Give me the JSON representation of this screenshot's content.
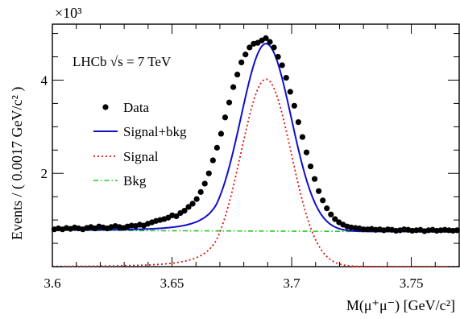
{
  "chart_data": {
    "type": "line",
    "xlabel": "M(μ⁺μ⁻) [GeV/c²]",
    "ylabel": "Events / ( 0.0017 GeV/c² )",
    "y_multiplier": "×10³",
    "annotation": "LHCb √s = 7 TeV",
    "xlim": [
      3.6,
      3.77
    ],
    "ylim": [
      0,
      5.2
    ],
    "x_ticks": [
      "3.6",
      "3.65",
      "3.7",
      "3.75"
    ],
    "y_ticks": [
      "2",
      "4"
    ],
    "legend": [
      {
        "label": "Data",
        "style": "marker",
        "color": "#000000"
      },
      {
        "label": "Signal+bkg",
        "style": "solid",
        "color": "#1010c8"
      },
      {
        "label": "Signal",
        "style": "dotted",
        "color": "#e01010"
      },
      {
        "label": "Bkg",
        "style": "dashdot",
        "color": "#22c822"
      }
    ],
    "model": {
      "peak_mass": 3.6893,
      "signal_amplitude": 4.02,
      "signal_width": 0.0105,
      "background_level": 0.78,
      "background_slope": -0.2
    },
    "series": [
      {
        "name": "Data",
        "x": [
          3.6008,
          3.6025,
          3.6042,
          3.6059,
          3.6076,
          3.6093,
          3.611,
          3.6127,
          3.6144,
          3.6161,
          3.6178,
          3.6195,
          3.6212,
          3.6229,
          3.6246,
          3.6263,
          3.628,
          3.6297,
          3.6314,
          3.6331,
          3.6348,
          3.6365,
          3.6382,
          3.6399,
          3.6416,
          3.6433,
          3.645,
          3.6467,
          3.6484,
          3.6501,
          3.6518,
          3.6535,
          3.6552,
          3.6569,
          3.6586,
          3.6603,
          3.662,
          3.6637,
          3.6654,
          3.6671,
          3.6688,
          3.6705,
          3.6722,
          3.6739,
          3.6756,
          3.6773,
          3.679,
          3.6807,
          3.6824,
          3.6841,
          3.6858,
          3.6875,
          3.6892,
          3.6909,
          3.6926,
          3.6943,
          3.696,
          3.6977,
          3.6994,
          3.7011,
          3.7028,
          3.7045,
          3.7062,
          3.7079,
          3.7096,
          3.7113,
          3.713,
          3.7147,
          3.7164,
          3.7181,
          3.7198,
          3.7215,
          3.7232,
          3.7249,
          3.7266,
          3.7283,
          3.73,
          3.7317,
          3.7334,
          3.7351,
          3.7368,
          3.7385,
          3.7402,
          3.7419,
          3.7436,
          3.7453,
          3.747,
          3.7487,
          3.7504,
          3.7521,
          3.7538,
          3.7555,
          3.7572,
          3.7589,
          3.7606,
          3.7623,
          3.764,
          3.7657,
          3.7674,
          3.7691
        ],
        "y": [
          0.8,
          0.82,
          0.8,
          0.83,
          0.81,
          0.84,
          0.82,
          0.8,
          0.83,
          0.85,
          0.82,
          0.86,
          0.84,
          0.82,
          0.85,
          0.87,
          0.85,
          0.83,
          0.86,
          0.88,
          0.87,
          0.9,
          0.88,
          0.92,
          0.95,
          0.98,
          1.0,
          1.02,
          1.05,
          1.1,
          1.08,
          1.15,
          1.2,
          1.28,
          1.35,
          1.45,
          1.6,
          1.78,
          2.0,
          2.28,
          2.55,
          2.85,
          3.2,
          3.52,
          3.85,
          4.12,
          4.38,
          4.55,
          4.7,
          4.78,
          4.8,
          4.85,
          4.9,
          4.82,
          4.7,
          4.5,
          4.32,
          4.05,
          3.75,
          3.45,
          3.1,
          2.78,
          2.45,
          2.15,
          1.88,
          1.62,
          1.42,
          1.25,
          1.12,
          1.02,
          0.95,
          0.9,
          0.86,
          0.84,
          0.83,
          0.82,
          0.8,
          0.8,
          0.81,
          0.79,
          0.8,
          0.78,
          0.8,
          0.79,
          0.77,
          0.78,
          0.8,
          0.79,
          0.77,
          0.78,
          0.79,
          0.76,
          0.78,
          0.79,
          0.77,
          0.78,
          0.79,
          0.78,
          0.77,
          0.78
        ]
      },
      {
        "name": "Signal+bkg",
        "x": [],
        "y": []
      },
      {
        "name": "Signal",
        "x": [],
        "y": []
      },
      {
        "name": "Bkg",
        "x": [],
        "y": []
      }
    ]
  }
}
